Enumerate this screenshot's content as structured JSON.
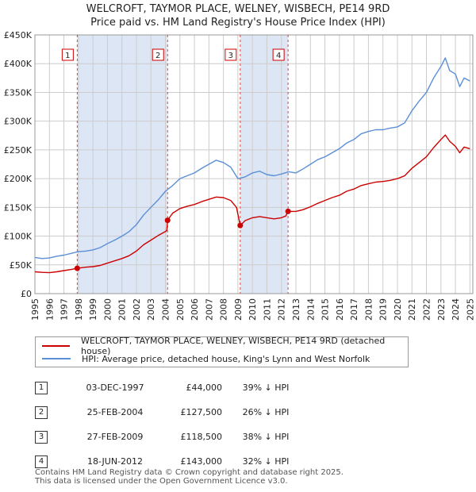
{
  "title_line1": "WELCROFT, TAYMOR PLACE, WELNEY, WISBECH, PE14 9RD",
  "title_line2": "Price paid vs. HM Land Registry's House Price Index (HPI)",
  "colors": {
    "property": "#cc0000",
    "hpi": "#5b8fd6",
    "shade": "#dde6f5",
    "grid": "#cccccc",
    "marker_line": "#cc0000"
  },
  "legend": {
    "property": "WELCROFT, TAYMOR PLACE, WELNEY, WISBECH, PE14 9RD (detached house)",
    "hpi": "HPI: Average price, detached house, King's Lynn and West Norfolk"
  },
  "sales": [
    {
      "num": "1",
      "date": "03-DEC-1997",
      "price": "£44,000",
      "hpi": "39% ↓ HPI"
    },
    {
      "num": "2",
      "date": "25-FEB-2004",
      "price": "£127,500",
      "hpi": "26% ↓ HPI"
    },
    {
      "num": "3",
      "date": "27-FEB-2009",
      "price": "£118,500",
      "hpi": "38% ↓ HPI"
    },
    {
      "num": "4",
      "date": "18-JUN-2012",
      "price": "£143,000",
      "hpi": "32% ↓ HPI"
    }
  ],
  "footer_line1": "Contains HM Land Registry data © Crown copyright and database right 2025.",
  "footer_line2": "This data is licensed under the Open Government Licence v3.0.",
  "chart_data": {
    "type": "line",
    "title": "WELCROFT, TAYMOR PLACE, WELNEY, WISBECH, PE14 9RD",
    "subtitle": "Price paid vs. HM Land Registry's House Price Index (HPI)",
    "xlabel": "",
    "ylabel": "",
    "xlim": [
      1995,
      2025.2
    ],
    "ylim": [
      0,
      450000
    ],
    "y_ticks": [
      {
        "value": 0,
        "label": "£0"
      },
      {
        "value": 50000,
        "label": "£50K"
      },
      {
        "value": 100000,
        "label": "£100K"
      },
      {
        "value": 150000,
        "label": "£150K"
      },
      {
        "value": 200000,
        "label": "£200K"
      },
      {
        "value": 250000,
        "label": "£250K"
      },
      {
        "value": 300000,
        "label": "£300K"
      },
      {
        "value": 350000,
        "label": "£350K"
      },
      {
        "value": 400000,
        "label": "£400K"
      },
      {
        "value": 450000,
        "label": "£450K"
      }
    ],
    "x_ticks": [
      "1995",
      "1996",
      "1997",
      "1998",
      "1999",
      "2000",
      "2001",
      "2002",
      "2003",
      "2004",
      "2005",
      "2006",
      "2007",
      "2008",
      "2009",
      "2010",
      "2011",
      "2012",
      "2013",
      "2014",
      "2015",
      "2016",
      "2017",
      "2018",
      "2019",
      "2020",
      "2021",
      "2022",
      "2023",
      "2024",
      "2025"
    ],
    "grid": true,
    "shaded_ranges": [
      [
        1997.92,
        2004.15
      ],
      [
        2009.16,
        2012.46
      ]
    ],
    "markers": [
      {
        "label": "1",
        "x": 1997.92,
        "y": 44000
      },
      {
        "label": "2",
        "x": 2004.15,
        "y": 127500
      },
      {
        "label": "3",
        "x": 2009.16,
        "y": 118500
      },
      {
        "label": "4",
        "x": 2012.46,
        "y": 143000
      }
    ],
    "series": [
      {
        "name": "HPI: Average price, detached house, King's Lynn and West Norfolk",
        "x": [
          1995.0,
          1995.5,
          1996.0,
          1996.5,
          1997.0,
          1997.5,
          1998.0,
          1998.5,
          1999.0,
          1999.5,
          2000.0,
          2000.5,
          2001.0,
          2001.5,
          2002.0,
          2002.5,
          2003.0,
          2003.5,
          2004.0,
          2004.5,
          2005.0,
          2005.5,
          2006.0,
          2006.5,
          2007.0,
          2007.5,
          2008.0,
          2008.5,
          2009.0,
          2009.5,
          2010.0,
          2010.5,
          2011.0,
          2011.5,
          2012.0,
          2012.5,
          2013.0,
          2013.5,
          2014.0,
          2014.5,
          2015.0,
          2015.5,
          2016.0,
          2016.5,
          2017.0,
          2017.5,
          2018.0,
          2018.5,
          2019.0,
          2019.5,
          2020.0,
          2020.5,
          2021.0,
          2021.5,
          2022.0,
          2022.5,
          2023.0,
          2023.3,
          2023.6,
          2024.0,
          2024.3,
          2024.6,
          2025.0
        ],
        "y": [
          63000,
          61000,
          62000,
          65000,
          67000,
          70000,
          73000,
          74000,
          76000,
          80000,
          87000,
          93000,
          100000,
          108000,
          120000,
          137000,
          150000,
          163000,
          178000,
          188000,
          200000,
          205000,
          210000,
          218000,
          225000,
          232000,
          228000,
          220000,
          200000,
          203000,
          210000,
          213000,
          207000,
          205000,
          208000,
          212000,
          210000,
          217000,
          225000,
          233000,
          238000,
          245000,
          252000,
          262000,
          268000,
          278000,
          282000,
          285000,
          285000,
          288000,
          290000,
          297000,
          318000,
          335000,
          350000,
          375000,
          395000,
          410000,
          388000,
          382000,
          360000,
          375000,
          370000
        ]
      },
      {
        "name": "WELCROFT, TAYMOR PLACE, WELNEY, WISBECH, PE14 9RD (detached house)",
        "x": [
          1995.0,
          1995.5,
          1996.0,
          1996.5,
          1997.0,
          1997.5,
          1997.92,
          1998.5,
          1999.0,
          1999.5,
          2000.0,
          2000.5,
          2001.0,
          2001.5,
          2002.0,
          2002.5,
          2003.0,
          2003.5,
          2004.0,
          2004.1,
          2004.15,
          2004.5,
          2005.0,
          2005.5,
          2006.0,
          2006.5,
          2007.0,
          2007.5,
          2008.0,
          2008.5,
          2008.9,
          2009.16,
          2009.5,
          2010.0,
          2010.5,
          2011.0,
          2011.5,
          2012.0,
          2012.3,
          2012.46,
          2013.0,
          2013.5,
          2014.0,
          2014.5,
          2015.0,
          2015.5,
          2016.0,
          2016.5,
          2017.0,
          2017.5,
          2018.0,
          2018.5,
          2019.0,
          2019.5,
          2020.0,
          2020.5,
          2021.0,
          2021.5,
          2022.0,
          2022.5,
          2023.0,
          2023.3,
          2023.6,
          2024.0,
          2024.3,
          2024.6,
          2025.0
        ],
        "y": [
          38000,
          37000,
          36500,
          38000,
          40000,
          42000,
          44000,
          46000,
          47000,
          49000,
          53000,
          57000,
          61000,
          66000,
          74000,
          85000,
          93000,
          101000,
          108000,
          110000,
          127500,
          140000,
          148000,
          152000,
          155000,
          160000,
          164000,
          168000,
          167000,
          162000,
          150000,
          118500,
          127000,
          132000,
          134000,
          132000,
          130000,
          132000,
          135000,
          143000,
          143000,
          146000,
          151000,
          157000,
          162000,
          167000,
          171000,
          178000,
          182000,
          188000,
          191000,
          194000,
          195000,
          197000,
          200000,
          205000,
          218000,
          228000,
          238000,
          254000,
          268000,
          276000,
          265000,
          256000,
          245000,
          255000,
          252000
        ]
      }
    ]
  }
}
